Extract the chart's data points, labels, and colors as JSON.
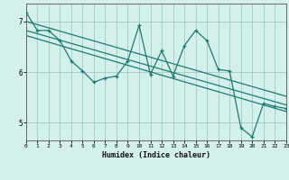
{
  "xlabel": "Humidex (Indice chaleur)",
  "bg_color": "#d4f0eb",
  "grid_color": "#a0ccc5",
  "line_color": "#1e7a70",
  "xlim": [
    0,
    23
  ],
  "ylim": [
    4.65,
    7.35
  ],
  "yticks": [
    5,
    6,
    7
  ],
  "xticks": [
    0,
    1,
    2,
    3,
    4,
    5,
    6,
    7,
    8,
    9,
    10,
    11,
    12,
    13,
    14,
    15,
    16,
    17,
    18,
    19,
    20,
    21,
    22,
    23
  ],
  "data_x": [
    0,
    1,
    2,
    3,
    4,
    5,
    6,
    7,
    8,
    9,
    10,
    11,
    12,
    13,
    14,
    15,
    16,
    17,
    18,
    19,
    20,
    21,
    22,
    23
  ],
  "data_y": [
    7.18,
    6.82,
    6.82,
    6.62,
    6.22,
    6.02,
    5.8,
    5.88,
    5.92,
    6.22,
    6.92,
    5.95,
    6.42,
    5.92,
    6.52,
    6.82,
    6.62,
    6.05,
    6.02,
    4.9,
    4.72,
    5.38,
    5.32,
    5.28
  ],
  "trend1_x": [
    0,
    23
  ],
  "trend1_y": [
    7.0,
    5.52
  ],
  "trend2_x": [
    0,
    23
  ],
  "trend2_y": [
    6.82,
    5.35
  ],
  "trend3_x": [
    0,
    23
  ],
  "trend3_y": [
    6.72,
    5.22
  ]
}
